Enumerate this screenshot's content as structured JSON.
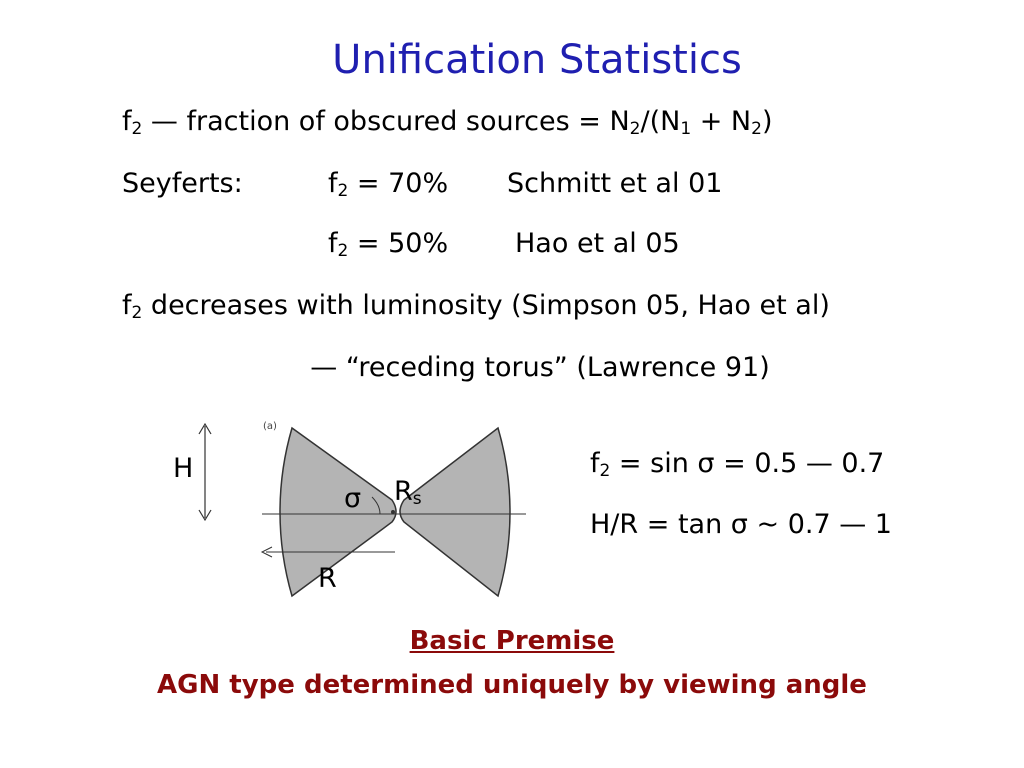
{
  "title": "Unification Statistics",
  "definition": [
    "f",
    "2",
    " — fraction of obscured sources = N",
    "2",
    "/(N",
    "1",
    " + N",
    "2",
    ")"
  ],
  "seyferts": {
    "label": "Seyferts:",
    "measurements": [
      {
        "symbol": "f",
        "subscript": "2",
        "value": " = 70%",
        "reference": "Schmitt et al 01"
      },
      {
        "symbol": "f",
        "subscript": "2",
        "value": " = 50%",
        "reference": "Hao et al 05"
      }
    ]
  },
  "luminosity": [
    "f",
    "2",
    " decreases with luminosity (Simpson 05, Hao et al)"
  ],
  "receding": "— “receding torus” (Lawrence 91)",
  "diagram": {
    "panel": "(a)",
    "height": "H",
    "angle": "σ",
    "inner_radius": [
      "R",
      "s"
    ],
    "radius": "R"
  },
  "relations": [
    [
      "f",
      "2",
      " = sin ",
      "σ",
      " = 0.5 — 0.7"
    ],
    [
      "H/R = tan ",
      "σ",
      " ~ 0.7 — 1"
    ]
  ],
  "premise": {
    "heading": "Basic Premise",
    "statement": "AGN type determined uniquely by viewing angle"
  }
}
